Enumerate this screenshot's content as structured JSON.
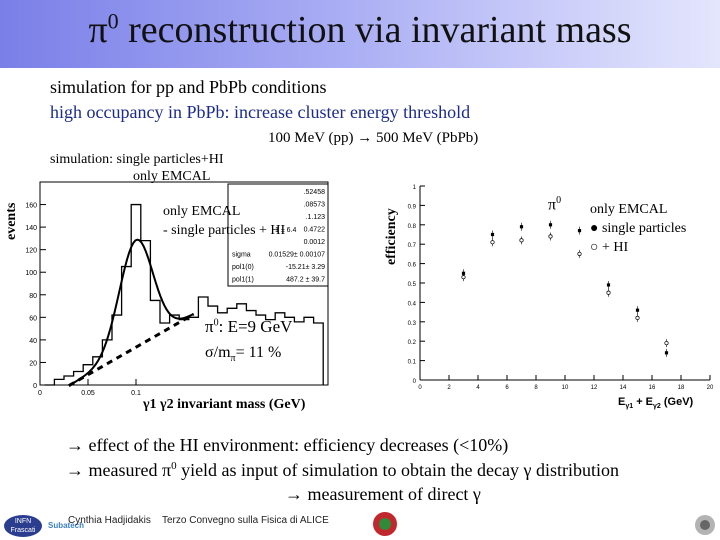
{
  "title": {
    "pi": "π",
    "sup": "0",
    "rest": " reconstruction via invariant mass"
  },
  "bullets": {
    "line1": "simulation for pp and PbPb conditions",
    "line2_a": "high occupancy in Pb",
    "line2_b": "Pb",
    "line2_c": ": increase cluster energy threshold",
    "line3": "100 MeV (pp) → 500 MeV (PbPb)"
  },
  "sim_label": {
    "line1": "simulation: single particles+HI",
    "line2": "only EMCAL"
  },
  "left_plot": {
    "ylabel": "events",
    "legend_line1": "only EMCAL",
    "legend_line2": "- single particles + HI",
    "annotation_pi": "π",
    "annotation_sup": "0",
    "annotation_energy": ": E=9 GeV",
    "annotation_res": "σ/m",
    "annotation_res_sub": "π",
    "annotation_res_val": "= 11 %",
    "xlabel": "γ1 γ2 invariant mass (GeV)",
    "stats": [
      [
        "",
        ".52458"
      ],
      [
        "",
        ".08573"
      ],
      [
        "",
        ".1.123"
      ],
      [
        "",
        "0.4722"
      ],
      [
        "",
        "0.0012"
      ],
      [
        "sigma",
        "0.01529± 0.00107"
      ],
      [
        "pol1(0)",
        "-15.21± 3.29"
      ],
      [
        "pol1(1)",
        "487.2 ± 39.7"
      ]
    ],
    "stats_extra": "1 ± 6.4"
  },
  "chart_data": [
    {
      "type": "bar",
      "title": "simulation: single particles+HI, only EMCAL",
      "xlabel": "γ1 γ2 invariant mass (GeV)",
      "ylabel": "events",
      "xlim": [
        0,
        0.3
      ],
      "ylim": [
        0,
        180
      ],
      "x_ticks": [
        "0",
        "0.05",
        "0.1"
      ],
      "y_ticks": [
        "0",
        "20",
        "40",
        "60",
        "80",
        "100",
        "120",
        "140",
        "160"
      ],
      "x": [
        0.01,
        0.02,
        0.03,
        0.04,
        0.05,
        0.06,
        0.07,
        0.08,
        0.09,
        0.1,
        0.11,
        0.12,
        0.13,
        0.14,
        0.15,
        0.16,
        0.17,
        0.18,
        0.19,
        0.2,
        0.21,
        0.22,
        0.23,
        0.24,
        0.25,
        0.26,
        0.27,
        0.28,
        0.29
      ],
      "values": [
        0,
        5,
        8,
        12,
        18,
        25,
        40,
        62,
        105,
        160,
        128,
        75,
        55,
        62,
        58,
        60,
        78,
        70,
        64,
        68,
        72,
        66,
        62,
        58,
        64,
        60,
        56,
        60,
        55
      ],
      "fit": "gaussian + pol1",
      "background": {
        "pol1_0": -15.21,
        "pol1_1": 487.2
      }
    },
    {
      "type": "scatter",
      "title": "π0 efficiency",
      "xlabel": "E γ1 + E γ2 (GeV)",
      "ylabel": "efficiency",
      "xlim": [
        0,
        20
      ],
      "ylim": [
        0,
        1
      ],
      "x_ticks": [
        "0",
        "2",
        "4",
        "6",
        "8",
        "10",
        "12",
        "14",
        "16",
        "18",
        "20"
      ],
      "y_ticks": [
        "0",
        "0.1",
        "0.2",
        "0.3",
        "0.4",
        "0.5",
        "0.6",
        "0.7",
        "0.8",
        "0.9",
        "1"
      ],
      "series": [
        {
          "name": "single particles",
          "x": [
            3,
            5,
            7,
            9,
            11,
            13,
            15,
            17
          ],
          "y": [
            0.55,
            0.75,
            0.79,
            0.8,
            0.77,
            0.49,
            0.36,
            0.14
          ]
        },
        {
          "name": "+ HI",
          "x": [
            3,
            5,
            7,
            9,
            11,
            13,
            15,
            17
          ],
          "y": [
            0.53,
            0.71,
            0.72,
            0.74,
            0.65,
            0.45,
            0.32,
            0.19
          ]
        }
      ]
    }
  ],
  "right_plot": {
    "ylabel": "efficiency",
    "pi_label": "π",
    "pi_sup": "0",
    "legend_title": "only EMCAL",
    "legend_line1": "● single particles",
    "legend_line2": "○ + HI",
    "xlabel_e1": "E",
    "xlabel_sub1": "γ1",
    "xlabel_plus": " + E",
    "xlabel_sub2": "γ2",
    "xlabel_unit": " (GeV)"
  },
  "bottom": {
    "line1": "→ effect of the HI environment:  efficiency decreases (<10%)",
    "line2_a": "→ measured ",
    "line2_pi": "π",
    "line2_sup": "0",
    "line2_b": " yield as input of simulation to obtain the decay γ distribution",
    "line3": "→  measurement of direct γ"
  },
  "footer": {
    "infn": "INFN",
    "frascati": "Frascati",
    "author": "Cynthia Hadjidakis",
    "conference": "Terzo Convegno sulla Fisica di ALICE",
    "logo2": "Subatech"
  },
  "colors": {
    "title_grad_start": "#7a7fe8",
    "title_grad_end": "#e4e6fd",
    "blue_text": "#1c2b8a"
  }
}
